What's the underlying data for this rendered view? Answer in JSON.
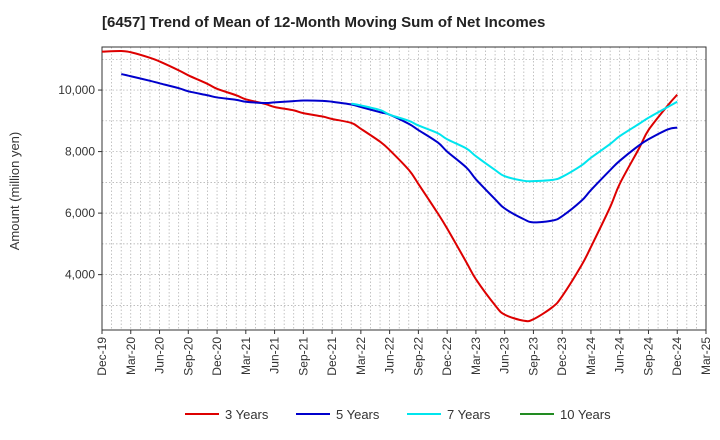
{
  "chart_data": {
    "type": "line",
    "title": "[6457]  Trend of Mean of 12-Month Moving Sum of Net Incomes",
    "xlabel": "",
    "ylabel": "Amount (million yen)",
    "ylim": [
      2200,
      11400
    ],
    "yticks": [
      4000,
      6000,
      8000,
      10000
    ],
    "ytick_labels": [
      "4,000",
      "6,000",
      "8,000",
      "10,000"
    ],
    "x_categories": [
      "Dec-19",
      "Mar-20",
      "Jun-20",
      "Sep-20",
      "Dec-20",
      "Mar-21",
      "Jun-21",
      "Sep-21",
      "Dec-21",
      "Mar-22",
      "Jun-22",
      "Sep-22",
      "Dec-22",
      "Mar-23",
      "Jun-23",
      "Sep-23",
      "Dec-23",
      "Mar-24",
      "Jun-24",
      "Sep-24",
      "Dec-24",
      "Mar-25"
    ],
    "grid": true,
    "legend_position": "bottom",
    "series": [
      {
        "name": "3 Years",
        "color": "#dd0000",
        "points": [
          [
            0,
            11250
          ],
          [
            0.67,
            11270
          ],
          [
            1,
            11230
          ],
          [
            1.67,
            11050
          ],
          [
            2,
            10930
          ],
          [
            2.67,
            10640
          ],
          [
            3,
            10480
          ],
          [
            3.67,
            10200
          ],
          [
            4,
            10040
          ],
          [
            4.67,
            9830
          ],
          [
            5,
            9700
          ],
          [
            5.67,
            9550
          ],
          [
            6,
            9450
          ],
          [
            6.67,
            9340
          ],
          [
            7,
            9250
          ],
          [
            7.67,
            9140
          ],
          [
            8,
            9060
          ],
          [
            8.67,
            8930
          ],
          [
            9,
            8740
          ],
          [
            9.67,
            8320
          ],
          [
            10,
            8050
          ],
          [
            10.67,
            7400
          ],
          [
            11,
            6950
          ],
          [
            11.67,
            6000
          ],
          [
            12,
            5500
          ],
          [
            12.67,
            4400
          ],
          [
            13,
            3850
          ],
          [
            13.67,
            3000
          ],
          [
            14,
            2700
          ],
          [
            14.67,
            2500
          ],
          [
            15,
            2550
          ],
          [
            15.67,
            2950
          ],
          [
            16,
            3300
          ],
          [
            16.67,
            4300
          ],
          [
            17,
            4900
          ],
          [
            17.67,
            6200
          ],
          [
            18,
            6950
          ],
          [
            18.67,
            8100
          ],
          [
            19,
            8700
          ],
          [
            19.67,
            9500
          ],
          [
            20,
            9850
          ]
        ]
      },
      {
        "name": "5 Years",
        "color": "#0000cc",
        "points": [
          [
            0.67,
            10520
          ],
          [
            1,
            10450
          ],
          [
            1.67,
            10300
          ],
          [
            2,
            10220
          ],
          [
            2.67,
            10060
          ],
          [
            3,
            9960
          ],
          [
            3.67,
            9830
          ],
          [
            4,
            9760
          ],
          [
            4.67,
            9680
          ],
          [
            5,
            9620
          ],
          [
            5.67,
            9580
          ],
          [
            6,
            9600
          ],
          [
            6.67,
            9640
          ],
          [
            7,
            9660
          ],
          [
            7.67,
            9650
          ],
          [
            8,
            9620
          ],
          [
            8.67,
            9530
          ],
          [
            9,
            9450
          ],
          [
            9.67,
            9280
          ],
          [
            10,
            9200
          ],
          [
            10.67,
            8900
          ],
          [
            11,
            8700
          ],
          [
            11.67,
            8300
          ],
          [
            12,
            8000
          ],
          [
            12.67,
            7480
          ],
          [
            13,
            7100
          ],
          [
            13.67,
            6450
          ],
          [
            14,
            6150
          ],
          [
            14.67,
            5800
          ],
          [
            15,
            5700
          ],
          [
            15.67,
            5760
          ],
          [
            16,
            5900
          ],
          [
            16.67,
            6400
          ],
          [
            17,
            6750
          ],
          [
            17.67,
            7400
          ],
          [
            18,
            7700
          ],
          [
            18.67,
            8200
          ],
          [
            19,
            8400
          ],
          [
            19.67,
            8720
          ],
          [
            20,
            8780
          ]
        ]
      },
      {
        "name": "7 Years",
        "color": "#00e5ee",
        "points": [
          [
            8.67,
            9560
          ],
          [
            9,
            9500
          ],
          [
            9.67,
            9350
          ],
          [
            10,
            9200
          ],
          [
            10.67,
            9000
          ],
          [
            11,
            8850
          ],
          [
            11.67,
            8600
          ],
          [
            12,
            8400
          ],
          [
            12.67,
            8100
          ],
          [
            13,
            7850
          ],
          [
            13.67,
            7400
          ],
          [
            14,
            7200
          ],
          [
            14.67,
            7050
          ],
          [
            15,
            7040
          ],
          [
            15.67,
            7080
          ],
          [
            16,
            7180
          ],
          [
            16.67,
            7550
          ],
          [
            17,
            7800
          ],
          [
            17.67,
            8250
          ],
          [
            18,
            8500
          ],
          [
            18.67,
            8900
          ],
          [
            19,
            9100
          ],
          [
            19.67,
            9450
          ],
          [
            20,
            9620
          ]
        ]
      },
      {
        "name": "10 Years",
        "color": "#228b22",
        "points": []
      }
    ]
  }
}
